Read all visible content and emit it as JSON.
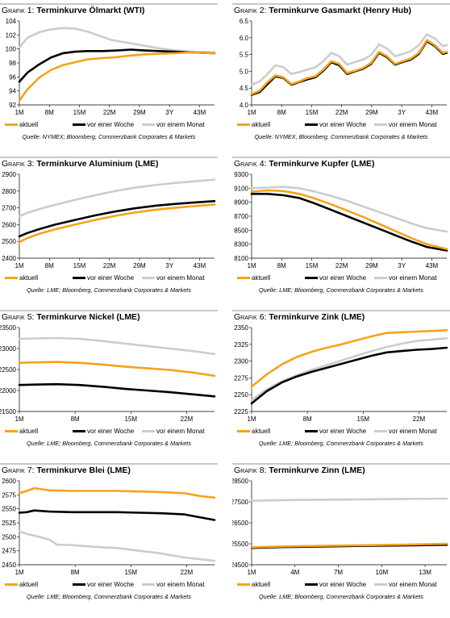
{
  "styles": {
    "aktuell": "#f7a21b",
    "woche": "#000000",
    "monat": "#cccccc"
  },
  "legend_labels": [
    "aktuell",
    "vor einer Woche",
    "vor einem Monat"
  ],
  "chart_data": [
    {
      "type": "line",
      "prefix": "Grafik 1:",
      "name": "Terminkurve Ölmarkt (WTI)",
      "source": "Quelle: NYMEX; Bloomberg, Commerzbank Corporates & Markets",
      "yticks": [
        92,
        94,
        96,
        98,
        100,
        102,
        104
      ],
      "ylim": [
        92,
        104
      ],
      "ydec": 0,
      "xlabels": [
        "1M",
        "8M",
        "15M",
        "22M",
        "29M",
        "3Y",
        "43M"
      ],
      "xn": 50,
      "series": [
        {
          "name": "aktuell",
          "x": [
            1,
            3,
            6,
            9,
            12,
            15,
            18,
            20,
            22,
            25,
            28,
            32,
            36,
            40,
            44,
            50
          ],
          "y": [
            92.6,
            94.2,
            95.9,
            97.0,
            97.7,
            98.1,
            98.5,
            98.6,
            98.7,
            98.8,
            99.0,
            99.2,
            99.3,
            99.4,
            99.5,
            99.4
          ]
        },
        {
          "name": "vor einer Woche",
          "x": [
            1,
            3,
            6,
            9,
            12,
            15,
            18,
            22,
            26,
            29,
            32,
            36,
            40,
            44,
            50
          ],
          "y": [
            95.3,
            96.6,
            97.8,
            98.8,
            99.4,
            99.6,
            99.7,
            99.7,
            99.8,
            99.9,
            99.8,
            99.7,
            99.6,
            99.5,
            99.4
          ]
        },
        {
          "name": "vor einem Monat",
          "x": [
            1,
            3,
            6,
            9,
            12,
            15,
            18,
            21,
            24,
            28,
            32,
            36,
            40,
            44,
            50
          ],
          "y": [
            100.2,
            101.6,
            102.4,
            102.8,
            103.0,
            102.9,
            102.5,
            101.9,
            101.3,
            100.9,
            100.5,
            100.1,
            99.8,
            99.6,
            99.5
          ]
        }
      ]
    },
    {
      "type": "line",
      "prefix": "Grafik 2:",
      "name": "Terminkurve Gasmarkt (Henry Hub)",
      "source": "Quelle: NYMEX, Bloomberg, Commerzbank Corporates & Markets",
      "yticks": [
        4.0,
        4.5,
        5.0,
        5.5,
        6.0,
        6.5
      ],
      "ylim": [
        4.0,
        6.5
      ],
      "ydec": 1,
      "xlabels": [
        "1M",
        "8M",
        "15M",
        "22M",
        "29M",
        "3Y",
        "43M"
      ],
      "xn": 50,
      "series": [
        {
          "name": "aktuell",
          "x": [
            1,
            3,
            5,
            7,
            9,
            11,
            13,
            15,
            17,
            19,
            21,
            23,
            25,
            27,
            29,
            31,
            33,
            35,
            37,
            39,
            41,
            43,
            45,
            47,
            49,
            50
          ],
          "y": [
            4.32,
            4.42,
            4.68,
            4.88,
            4.82,
            4.62,
            4.7,
            4.8,
            4.85,
            5.05,
            5.3,
            5.22,
            4.95,
            5.02,
            5.1,
            5.25,
            5.58,
            5.45,
            5.22,
            5.3,
            5.38,
            5.55,
            5.93,
            5.78,
            5.55,
            5.58
          ]
        },
        {
          "name": "vor einer Woche",
          "x": [
            1,
            3,
            5,
            7,
            9,
            11,
            13,
            15,
            17,
            19,
            21,
            23,
            25,
            27,
            29,
            31,
            33,
            35,
            37,
            39,
            41,
            43,
            45,
            47,
            49,
            50
          ],
          "y": [
            4.3,
            4.38,
            4.62,
            4.85,
            4.8,
            4.6,
            4.68,
            4.76,
            4.82,
            5.02,
            5.27,
            5.18,
            4.92,
            5.0,
            5.08,
            5.22,
            5.55,
            5.42,
            5.2,
            5.28,
            5.35,
            5.52,
            5.9,
            5.75,
            5.52,
            5.55
          ]
        },
        {
          "name": "vor einem Monat",
          "x": [
            1,
            3,
            5,
            7,
            9,
            11,
            13,
            15,
            17,
            19,
            21,
            23,
            25,
            27,
            29,
            31,
            33,
            35,
            37,
            39,
            41,
            43,
            45,
            47,
            49,
            50
          ],
          "y": [
            4.6,
            4.7,
            4.92,
            5.18,
            5.12,
            4.92,
            4.98,
            5.05,
            5.12,
            5.3,
            5.55,
            5.45,
            5.2,
            5.28,
            5.35,
            5.48,
            5.8,
            5.68,
            5.45,
            5.52,
            5.6,
            5.78,
            6.1,
            5.98,
            5.75,
            5.78
          ]
        }
      ]
    },
    {
      "type": "line",
      "prefix": "Grafik 3:",
      "name": "Terminkurve Aluminium (LME)",
      "source": "Quelle: LME; Bloomberg, Commerzbank Corporates & Markets",
      "yticks": [
        2400,
        2500,
        2600,
        2700,
        2800,
        2900
      ],
      "ylim": [
        2400,
        2900
      ],
      "ydec": 0,
      "xlabels": [
        "1M",
        "8M",
        "15M",
        "22M",
        "29M",
        "3Y",
        "43M"
      ],
      "xn": 50,
      "series": [
        {
          "name": "aktuell",
          "x": [
            1,
            3,
            6,
            10,
            15,
            20,
            25,
            30,
            35,
            40,
            45,
            50
          ],
          "y": [
            2495,
            2520,
            2545,
            2572,
            2600,
            2628,
            2652,
            2672,
            2688,
            2700,
            2710,
            2720
          ]
        },
        {
          "name": "vor einer Woche",
          "x": [
            1,
            3,
            6,
            10,
            15,
            20,
            25,
            30,
            35,
            40,
            45,
            50
          ],
          "y": [
            2530,
            2550,
            2573,
            2600,
            2628,
            2655,
            2678,
            2697,
            2712,
            2723,
            2732,
            2740
          ]
        },
        {
          "name": "vor einem Monat",
          "x": [
            1,
            3,
            6,
            10,
            15,
            20,
            25,
            30,
            35,
            40,
            45,
            50
          ],
          "y": [
            2650,
            2670,
            2693,
            2718,
            2748,
            2775,
            2800,
            2820,
            2835,
            2848,
            2858,
            2868
          ]
        }
      ]
    },
    {
      "type": "line",
      "prefix": "Grafik 4:",
      "name": "Terminkurve Kupfer (LME)",
      "source": "Quelle: LME; Bloomberg, Commerzbank Corporates & Markets",
      "yticks": [
        8100,
        8300,
        8500,
        8700,
        8900,
        9100,
        9300
      ],
      "ylim": [
        8100,
        9300
      ],
      "ydec": 0,
      "xlabels": [
        "1M",
        "8M",
        "15M",
        "22M",
        "29M",
        "3Y",
        "43M"
      ],
      "xn": 50,
      "series": [
        {
          "name": "aktuell",
          "x": [
            1,
            5,
            9,
            13,
            17,
            21,
            25,
            29,
            33,
            37,
            41,
            45,
            50
          ],
          "y": [
            9050,
            9070,
            9060,
            9020,
            8950,
            8870,
            8780,
            8690,
            8590,
            8490,
            8390,
            8300,
            8230
          ]
        },
        {
          "name": "vor einer Woche",
          "x": [
            1,
            5,
            9,
            13,
            17,
            21,
            25,
            29,
            33,
            37,
            41,
            45,
            50
          ],
          "y": [
            9020,
            9020,
            9000,
            8960,
            8880,
            8790,
            8700,
            8610,
            8520,
            8430,
            8340,
            8260,
            8210
          ]
        },
        {
          "name": "vor einem Monat",
          "x": [
            1,
            5,
            9,
            13,
            17,
            21,
            25,
            29,
            33,
            37,
            41,
            45,
            50
          ],
          "y": [
            9100,
            9110,
            9120,
            9100,
            9050,
            8990,
            8920,
            8840,
            8760,
            8680,
            8600,
            8530,
            8480
          ]
        }
      ]
    },
    {
      "type": "line",
      "prefix": "Grafik 5:",
      "name": "Terminkurve Nickel (LME)",
      "source": "Quelle: LME; Bloomberg, Commerzbank Corporates & Markets",
      "yticks": [
        21500,
        22000,
        22500,
        23000,
        23500
      ],
      "ylim": [
        21500,
        23500
      ],
      "ydec": 0,
      "xlabels": [
        "1M",
        "8M",
        "15M",
        "22M"
      ],
      "xn": 27,
      "series": [
        {
          "name": "aktuell",
          "x": [
            1,
            3,
            6,
            9,
            12,
            15,
            18,
            21,
            24,
            27
          ],
          "y": [
            22660,
            22670,
            22680,
            22660,
            22620,
            22570,
            22530,
            22490,
            22430,
            22350
          ]
        },
        {
          "name": "vor einer Woche",
          "x": [
            1,
            3,
            6,
            9,
            12,
            15,
            18,
            21,
            24,
            27
          ],
          "y": [
            22130,
            22140,
            22150,
            22130,
            22090,
            22040,
            22000,
            21960,
            21910,
            21860
          ]
        },
        {
          "name": "vor einem Monat",
          "x": [
            1,
            3,
            6,
            9,
            12,
            15,
            18,
            21,
            24,
            27
          ],
          "y": [
            23230,
            23240,
            23250,
            23230,
            23180,
            23120,
            23060,
            23000,
            22940,
            22870
          ]
        }
      ]
    },
    {
      "type": "line",
      "prefix": "Grafik 6:",
      "name": "Terminkurve Zink (LME)",
      "source": "Quelle: LME; Bloomberg, Commerzbank Corporates & Markets",
      "yticks": [
        2225,
        2250,
        2275,
        2300,
        2325,
        2350
      ],
      "ylim": [
        2225,
        2350
      ],
      "ydec": 0,
      "xlabels": [
        "1M",
        "8M",
        "15M",
        "22M"
      ],
      "xn": 27,
      "series": [
        {
          "name": "aktuell",
          "x": [
            1,
            3,
            5,
            7,
            9,
            11,
            13,
            15,
            17,
            19,
            21,
            23,
            25,
            27
          ],
          "y": [
            2262,
            2280,
            2295,
            2306,
            2314,
            2320,
            2325,
            2331,
            2337,
            2342,
            2343,
            2344,
            2345,
            2346
          ]
        },
        {
          "name": "vor einer Woche",
          "x": [
            1,
            3,
            5,
            7,
            9,
            11,
            13,
            15,
            17,
            19,
            21,
            23,
            25,
            27
          ],
          "y": [
            2237,
            2255,
            2268,
            2277,
            2284,
            2290,
            2296,
            2302,
            2308,
            2313,
            2315,
            2317,
            2318,
            2320
          ]
        },
        {
          "name": "vor einem Monat",
          "x": [
            1,
            3,
            5,
            7,
            9,
            11,
            13,
            15,
            17,
            19,
            21,
            23,
            25,
            27
          ],
          "y": [
            2242,
            2258,
            2270,
            2279,
            2287,
            2294,
            2301,
            2308,
            2315,
            2321,
            2326,
            2330,
            2332,
            2334
          ]
        }
      ]
    },
    {
      "type": "line",
      "prefix": "Grafik 7:",
      "name": "Terminkurve Blei (LME)",
      "source": "Quelle: LME; Bloomberg, Commerzbank Corporates & Markets",
      "yticks": [
        2450,
        2475,
        2500,
        2525,
        2550,
        2575,
        2600
      ],
      "ylim": [
        2450,
        2600
      ],
      "ydec": 0,
      "xlabels": [
        "1M",
        "8M",
        "15M",
        "22M"
      ],
      "xn": 27,
      "series": [
        {
          "name": "aktuell",
          "x": [
            1,
            2,
            3,
            5,
            8,
            11,
            14,
            17,
            20,
            23,
            25,
            27
          ],
          "y": [
            2578,
            2582,
            2587,
            2583,
            2582,
            2582,
            2582,
            2581,
            2580,
            2578,
            2573,
            2570
          ]
        },
        {
          "name": "vor einer Woche",
          "x": [
            1,
            2,
            3,
            5,
            8,
            11,
            14,
            17,
            20,
            23,
            25,
            27
          ],
          "y": [
            2543,
            2544,
            2547,
            2545,
            2544,
            2544,
            2544,
            2543,
            2542,
            2540,
            2535,
            2530
          ]
        },
        {
          "name": "vor einem Monat",
          "x": [
            1,
            2,
            3,
            5,
            6,
            8,
            11,
            14,
            17,
            20,
            23,
            25,
            27
          ],
          "y": [
            2510,
            2505,
            2502,
            2495,
            2486,
            2485,
            2482,
            2480,
            2475,
            2470,
            2463,
            2460,
            2457
          ]
        }
      ]
    },
    {
      "type": "line",
      "prefix": "Grafik 8:",
      "name": "Terminkurve Zinn (LME)",
      "source": "Quelle: LME; Bloomberg, Commerzbank Corporates & Markets",
      "yticks": [
        24500,
        25500,
        26500,
        27500,
        28500
      ],
      "ylim": [
        24500,
        28500
      ],
      "ydec": 0,
      "xlabels": [
        "1M",
        "4M",
        "7M",
        "10M",
        "13M"
      ],
      "xn": 15,
      "series": [
        {
          "name": "aktuell",
          "x": [
            1,
            3,
            6,
            9,
            12,
            15
          ],
          "y": [
            25330,
            25370,
            25400,
            25430,
            25460,
            25500
          ]
        },
        {
          "name": "vor einer Woche",
          "x": [
            1,
            3,
            6,
            9,
            12,
            15
          ],
          "y": [
            25300,
            25340,
            25370,
            25400,
            25420,
            25450
          ]
        },
        {
          "name": "vor einem Monat",
          "x": [
            1,
            3,
            6,
            9,
            12,
            15
          ],
          "y": [
            27550,
            27580,
            27600,
            27620,
            27640,
            27650
          ]
        }
      ]
    }
  ]
}
